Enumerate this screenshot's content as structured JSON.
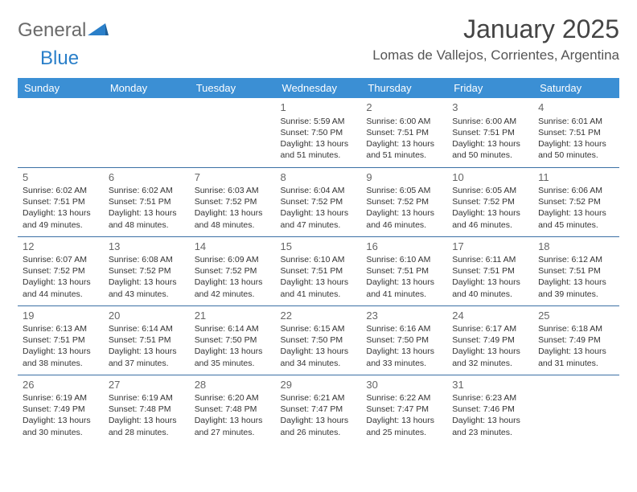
{
  "brand": {
    "part1": "General",
    "part2": "Blue"
  },
  "title": "January 2025",
  "location": "Lomas de Vallejos, Corrientes, Argentina",
  "colors": {
    "header_bg": "#3b8fd4",
    "header_text": "#ffffff",
    "row_divider": "#3b70a5",
    "logo_gray": "#6a6a6a",
    "logo_blue": "#2a7fc9",
    "title_color": "#444444",
    "body_text": "#333333",
    "background": "#ffffff"
  },
  "weekday_labels": [
    "Sunday",
    "Monday",
    "Tuesday",
    "Wednesday",
    "Thursday",
    "Friday",
    "Saturday"
  ],
  "weeks": [
    [
      null,
      null,
      null,
      {
        "day": "1",
        "sunrise": "Sunrise: 5:59 AM",
        "sunset": "Sunset: 7:50 PM",
        "daylight": "Daylight: 13 hours and 51 minutes."
      },
      {
        "day": "2",
        "sunrise": "Sunrise: 6:00 AM",
        "sunset": "Sunset: 7:51 PM",
        "daylight": "Daylight: 13 hours and 51 minutes."
      },
      {
        "day": "3",
        "sunrise": "Sunrise: 6:00 AM",
        "sunset": "Sunset: 7:51 PM",
        "daylight": "Daylight: 13 hours and 50 minutes."
      },
      {
        "day": "4",
        "sunrise": "Sunrise: 6:01 AM",
        "sunset": "Sunset: 7:51 PM",
        "daylight": "Daylight: 13 hours and 50 minutes."
      }
    ],
    [
      {
        "day": "5",
        "sunrise": "Sunrise: 6:02 AM",
        "sunset": "Sunset: 7:51 PM",
        "daylight": "Daylight: 13 hours and 49 minutes."
      },
      {
        "day": "6",
        "sunrise": "Sunrise: 6:02 AM",
        "sunset": "Sunset: 7:51 PM",
        "daylight": "Daylight: 13 hours and 48 minutes."
      },
      {
        "day": "7",
        "sunrise": "Sunrise: 6:03 AM",
        "sunset": "Sunset: 7:52 PM",
        "daylight": "Daylight: 13 hours and 48 minutes."
      },
      {
        "day": "8",
        "sunrise": "Sunrise: 6:04 AM",
        "sunset": "Sunset: 7:52 PM",
        "daylight": "Daylight: 13 hours and 47 minutes."
      },
      {
        "day": "9",
        "sunrise": "Sunrise: 6:05 AM",
        "sunset": "Sunset: 7:52 PM",
        "daylight": "Daylight: 13 hours and 46 minutes."
      },
      {
        "day": "10",
        "sunrise": "Sunrise: 6:05 AM",
        "sunset": "Sunset: 7:52 PM",
        "daylight": "Daylight: 13 hours and 46 minutes."
      },
      {
        "day": "11",
        "sunrise": "Sunrise: 6:06 AM",
        "sunset": "Sunset: 7:52 PM",
        "daylight": "Daylight: 13 hours and 45 minutes."
      }
    ],
    [
      {
        "day": "12",
        "sunrise": "Sunrise: 6:07 AM",
        "sunset": "Sunset: 7:52 PM",
        "daylight": "Daylight: 13 hours and 44 minutes."
      },
      {
        "day": "13",
        "sunrise": "Sunrise: 6:08 AM",
        "sunset": "Sunset: 7:52 PM",
        "daylight": "Daylight: 13 hours and 43 minutes."
      },
      {
        "day": "14",
        "sunrise": "Sunrise: 6:09 AM",
        "sunset": "Sunset: 7:52 PM",
        "daylight": "Daylight: 13 hours and 42 minutes."
      },
      {
        "day": "15",
        "sunrise": "Sunrise: 6:10 AM",
        "sunset": "Sunset: 7:51 PM",
        "daylight": "Daylight: 13 hours and 41 minutes."
      },
      {
        "day": "16",
        "sunrise": "Sunrise: 6:10 AM",
        "sunset": "Sunset: 7:51 PM",
        "daylight": "Daylight: 13 hours and 41 minutes."
      },
      {
        "day": "17",
        "sunrise": "Sunrise: 6:11 AM",
        "sunset": "Sunset: 7:51 PM",
        "daylight": "Daylight: 13 hours and 40 minutes."
      },
      {
        "day": "18",
        "sunrise": "Sunrise: 6:12 AM",
        "sunset": "Sunset: 7:51 PM",
        "daylight": "Daylight: 13 hours and 39 minutes."
      }
    ],
    [
      {
        "day": "19",
        "sunrise": "Sunrise: 6:13 AM",
        "sunset": "Sunset: 7:51 PM",
        "daylight": "Daylight: 13 hours and 38 minutes."
      },
      {
        "day": "20",
        "sunrise": "Sunrise: 6:14 AM",
        "sunset": "Sunset: 7:51 PM",
        "daylight": "Daylight: 13 hours and 37 minutes."
      },
      {
        "day": "21",
        "sunrise": "Sunrise: 6:14 AM",
        "sunset": "Sunset: 7:50 PM",
        "daylight": "Daylight: 13 hours and 35 minutes."
      },
      {
        "day": "22",
        "sunrise": "Sunrise: 6:15 AM",
        "sunset": "Sunset: 7:50 PM",
        "daylight": "Daylight: 13 hours and 34 minutes."
      },
      {
        "day": "23",
        "sunrise": "Sunrise: 6:16 AM",
        "sunset": "Sunset: 7:50 PM",
        "daylight": "Daylight: 13 hours and 33 minutes."
      },
      {
        "day": "24",
        "sunrise": "Sunrise: 6:17 AM",
        "sunset": "Sunset: 7:49 PM",
        "daylight": "Daylight: 13 hours and 32 minutes."
      },
      {
        "day": "25",
        "sunrise": "Sunrise: 6:18 AM",
        "sunset": "Sunset: 7:49 PM",
        "daylight": "Daylight: 13 hours and 31 minutes."
      }
    ],
    [
      {
        "day": "26",
        "sunrise": "Sunrise: 6:19 AM",
        "sunset": "Sunset: 7:49 PM",
        "daylight": "Daylight: 13 hours and 30 minutes."
      },
      {
        "day": "27",
        "sunrise": "Sunrise: 6:19 AM",
        "sunset": "Sunset: 7:48 PM",
        "daylight": "Daylight: 13 hours and 28 minutes."
      },
      {
        "day": "28",
        "sunrise": "Sunrise: 6:20 AM",
        "sunset": "Sunset: 7:48 PM",
        "daylight": "Daylight: 13 hours and 27 minutes."
      },
      {
        "day": "29",
        "sunrise": "Sunrise: 6:21 AM",
        "sunset": "Sunset: 7:47 PM",
        "daylight": "Daylight: 13 hours and 26 minutes."
      },
      {
        "day": "30",
        "sunrise": "Sunrise: 6:22 AM",
        "sunset": "Sunset: 7:47 PM",
        "daylight": "Daylight: 13 hours and 25 minutes."
      },
      {
        "day": "31",
        "sunrise": "Sunrise: 6:23 AM",
        "sunset": "Sunset: 7:46 PM",
        "daylight": "Daylight: 13 hours and 23 minutes."
      },
      null
    ]
  ]
}
